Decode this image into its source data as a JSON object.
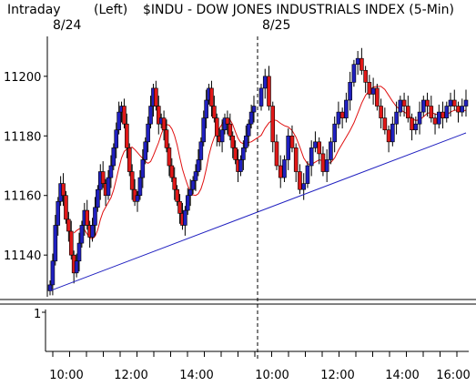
{
  "header": {
    "mode": "Intraday",
    "axis_side": "(Left)",
    "symbol_title": "$INDU - DOW JONES INDUSTRIALS INDEX (5-Min)",
    "date_labels": [
      "8/24",
      "8/25"
    ]
  },
  "colors": {
    "up_candle": "#2020c0",
    "down_candle": "#e01818",
    "moving_average": "#e01010",
    "trendline": "#2020c0",
    "axis": "#000000",
    "divider": "#000000"
  },
  "chart_data": {
    "type": "candlestick",
    "title": "$INDU - DOW JONES INDUSTRIALS INDEX (5-Min)",
    "timeframe": "Intraday",
    "y_axis_side": "(Left)",
    "ylim": [
      11126,
      11214
    ],
    "yticks": [
      11140,
      11160,
      11180,
      11200
    ],
    "x_tick_labels": [
      "10:00",
      "12:00",
      "14:00",
      "10:00",
      "12:00",
      "14:00",
      "16:00"
    ],
    "days": [
      {
        "date": "8/24",
        "closes": [
          11130,
          11138,
          11150,
          11158,
          11164,
          11160,
          11152,
          11148,
          11140,
          11134,
          11138,
          11144,
          11150,
          11155,
          11150,
          11146,
          11150,
          11156,
          11162,
          11168,
          11164,
          11160,
          11166,
          11170,
          11176,
          11182,
          11188,
          11190,
          11184,
          11176,
          11168,
          11162,
          11158,
          11160,
          11166,
          11172,
          11178,
          11184,
          11190,
          11196,
          11190,
          11184,
          11186,
          11182,
          11176,
          11170,
          11166,
          11162,
          11158,
          11154,
          11150,
          11155,
          11160,
          11162,
          11165,
          11168,
          11172,
          11178,
          11186,
          11192,
          11196,
          11190,
          11186,
          11180,
          11178,
          11182,
          11186,
          11184,
          11180,
          11176,
          11172,
          11168,
          11172,
          11176,
          11180,
          11184,
          11188,
          11190
        ]
      },
      {
        "date": "8/25",
        "closes": [
          11196,
          11200,
          11190,
          11178,
          11170,
          11166,
          11172,
          11180,
          11176,
          11168,
          11162,
          11164,
          11170,
          11176,
          11178,
          11174,
          11168,
          11172,
          11178,
          11184,
          11188,
          11186,
          11192,
          11198,
          11204,
          11206,
          11202,
          11198,
          11194,
          11196,
          11190,
          11186,
          11182,
          11178,
          11184,
          11188,
          11192,
          11190,
          11186,
          11182,
          11184,
          11188,
          11192,
          11190,
          11186,
          11184,
          11188,
          11186,
          11190,
          11192,
          11190,
          11188,
          11190,
          11192
        ]
      }
    ],
    "moving_average": {
      "period": 10
    },
    "trendline": {
      "from": {
        "day": "8/24",
        "time": "09:35",
        "value": 11128
      },
      "to": {
        "day": "8/25",
        "time": "16:00",
        "value": 11181
      }
    },
    "lower_panel": {
      "label": "1",
      "value": 1
    }
  }
}
